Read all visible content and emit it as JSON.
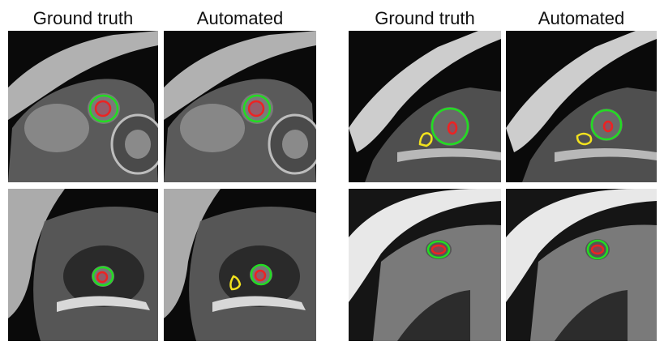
{
  "headers": {
    "left_gt": "Ground truth",
    "left_auto": "Automated",
    "right_gt": "Ground truth",
    "right_auto": "Automated"
  },
  "contour_colors": {
    "epicardium": "#22dd22",
    "endocardium": "#ee2222",
    "right_ventricle": "#f2e21e"
  },
  "panels": [
    {
      "id": "left-top-ground-truth",
      "epicardium": true,
      "endocardium": true,
      "right_ventricle": false
    },
    {
      "id": "left-top-automated",
      "epicardium": true,
      "endocardium": true,
      "right_ventricle": false
    },
    {
      "id": "left-bottom-ground-truth",
      "epicardium": true,
      "endocardium": true,
      "right_ventricle": false
    },
    {
      "id": "left-bottom-automated",
      "epicardium": true,
      "endocardium": true,
      "right_ventricle": true
    },
    {
      "id": "right-top-ground-truth",
      "epicardium": true,
      "endocardium": true,
      "right_ventricle": true
    },
    {
      "id": "right-top-automated",
      "epicardium": true,
      "endocardium": true,
      "right_ventricle": true
    },
    {
      "id": "right-bottom-ground-truth",
      "epicardium": true,
      "endocardium": true,
      "right_ventricle": false
    },
    {
      "id": "right-bottom-automated",
      "epicardium": true,
      "endocardium": true,
      "right_ventricle": false
    }
  ]
}
